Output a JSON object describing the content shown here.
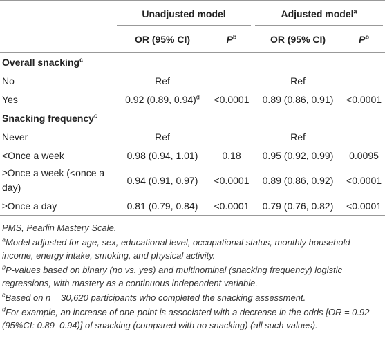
{
  "table": {
    "header": {
      "group1": "Unadjusted model",
      "group2": "Adjusted model",
      "group2_sup": "a",
      "col_or1": "OR (95% CI)",
      "col_p1": "P",
      "col_p1_sup": "b",
      "col_or2": "OR (95% CI)",
      "col_p2": "P",
      "col_p2_sup": "b"
    },
    "sections": [
      {
        "title": "Overall snacking",
        "title_sup": "c",
        "rows": [
          {
            "label": "No",
            "cells": [
              "Ref",
              null,
              "Ref",
              null
            ]
          },
          {
            "label": "Yes",
            "cells": [
              "0.92 (0.89, 0.94)",
              "<0.0001",
              "0.89 (0.86, 0.91)",
              "<0.0001"
            ],
            "cell0_sup": "d"
          }
        ]
      },
      {
        "title": "Snacking frequency",
        "title_sup": "c",
        "rows": [
          {
            "label": "Never",
            "cells": [
              "Ref",
              null,
              "Ref",
              null
            ]
          },
          {
            "label": "<Once a week",
            "cells": [
              "0.98 (0.94, 1.01)",
              "0.18",
              "0.95 (0.92, 0.99)",
              "0.0095"
            ]
          },
          {
            "label": "≥Once a week (<once a day)",
            "cells": [
              "0.94 (0.91, 0.97)",
              "<0.0001",
              "0.89 (0.86, 0.92)",
              "<0.0001"
            ]
          },
          {
            "label": "≥Once a day",
            "cells": [
              "0.81 (0.79, 0.84)",
              "<0.0001",
              "0.79 (0.76, 0.82)",
              "<0.0001"
            ]
          }
        ]
      }
    ]
  },
  "footnotes": [
    {
      "text": "PMS, Pearlin Mastery Scale."
    },
    {
      "sup": "a",
      "text": "Model adjusted for age, sex, educational level, occupational status, monthly household income, energy intake, smoking, and physical activity."
    },
    {
      "sup": "b",
      "text": "P-values based on binary (no vs. yes) and multinominal (snacking frequency) logistic regressions, with mastery as a continuous independent variable."
    },
    {
      "sup": "c",
      "text": "Based on n = 30,620 participants who completed the snacking assessment."
    },
    {
      "sup": "d",
      "text": "For example, an increase of one-point is associated with a decrease in the odds [OR = 0.92 (95%CI: 0.89–0.94)] of snacking (compared with no snacking) (all such values)."
    }
  ]
}
